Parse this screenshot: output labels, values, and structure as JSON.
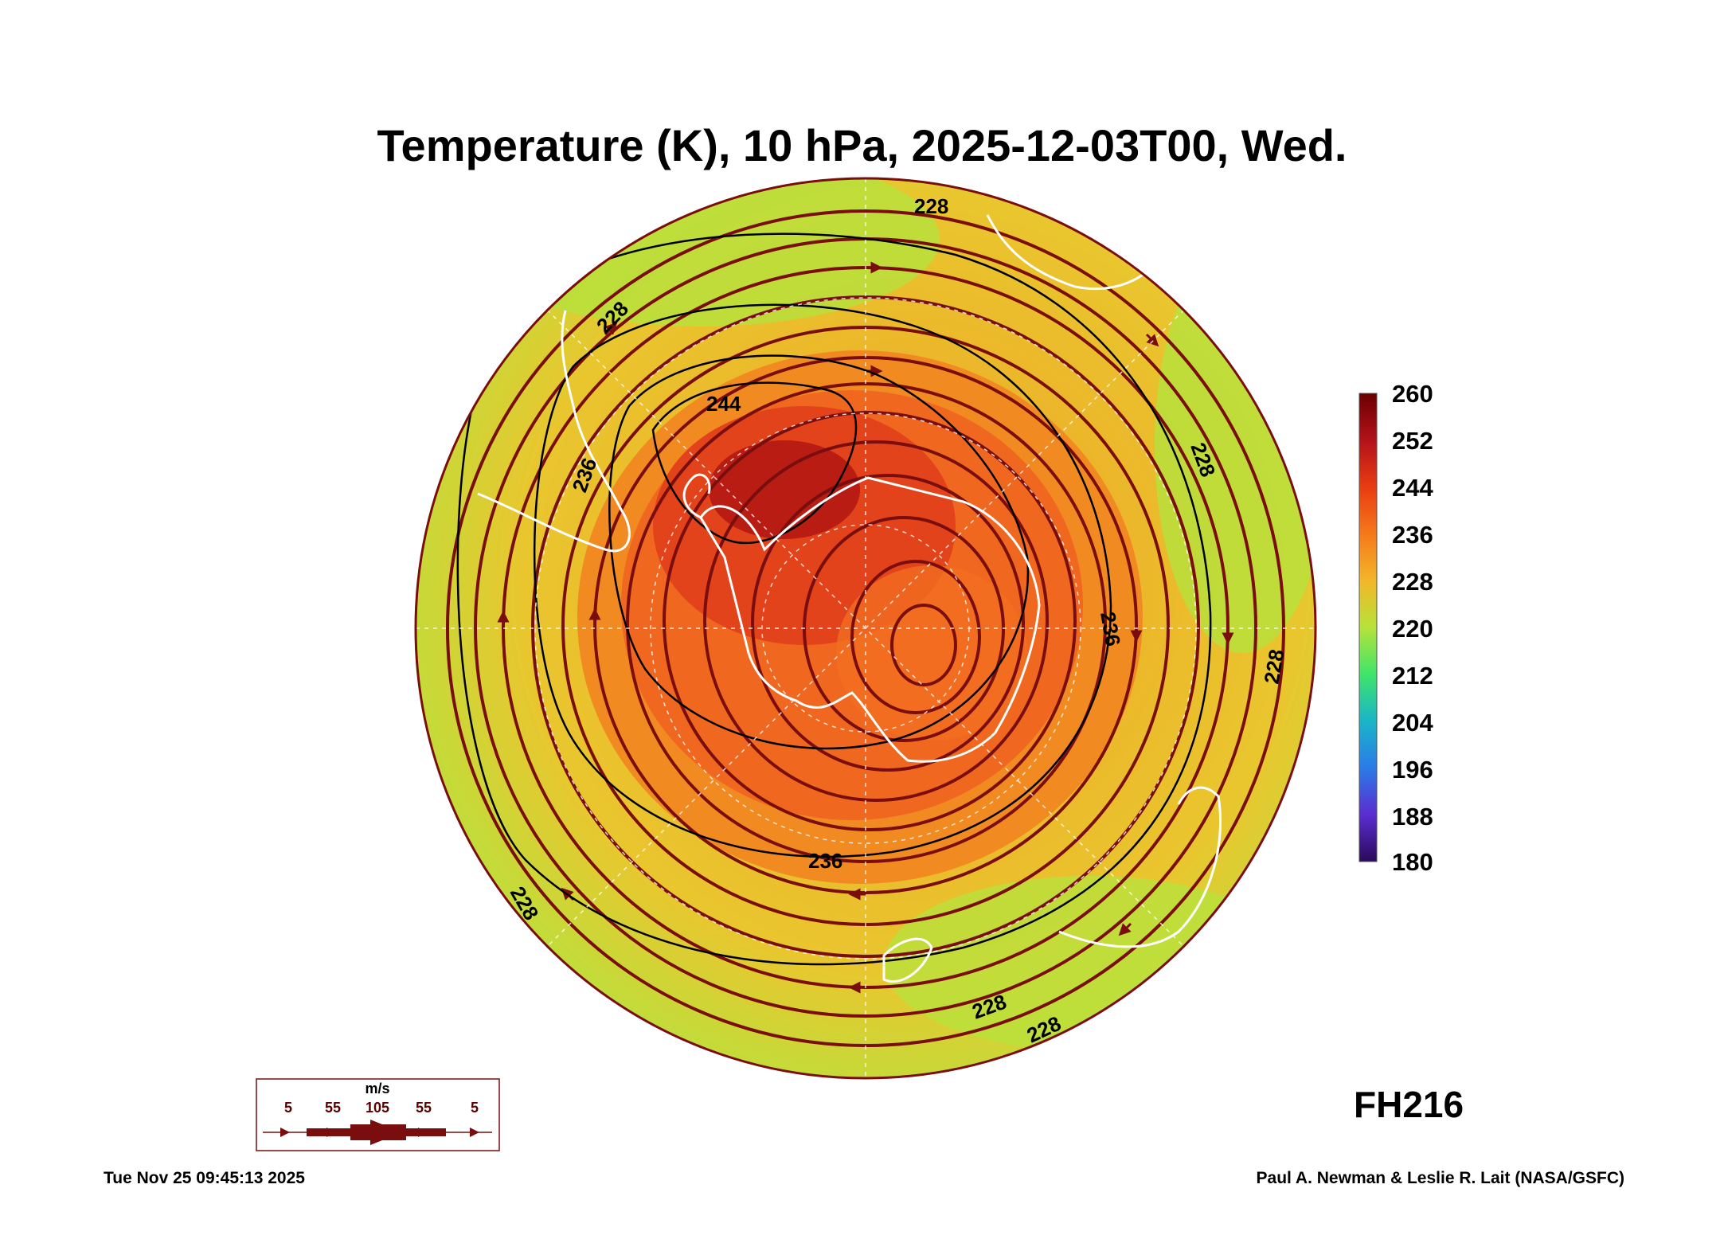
{
  "title": "Temperature (K), 10 hPa, 2025-12-03T00, Wed.",
  "forecast_hour": "FH216",
  "footer": {
    "timestamp": "Tue Nov 25 09:45:13 2025",
    "credit": "Paul A. Newman & Leslie R. Lait (NASA/GSFC)"
  },
  "colorbar": {
    "ticks": [
      "260",
      "252",
      "244",
      "236",
      "228",
      "220",
      "212",
      "204",
      "196",
      "188",
      "180"
    ],
    "colors": [
      "#6a0000",
      "#b3121a",
      "#e83c12",
      "#f6791a",
      "#f3b62a",
      "#b6e33a",
      "#3fe46a",
      "#1ab5c8",
      "#2b7be8",
      "#5a2dd0",
      "#2a0a5a"
    ]
  },
  "contour_labels": [
    "244",
    "236",
    "236",
    "236",
    "228",
    "228",
    "228",
    "228",
    "228",
    "228",
    "228"
  ],
  "wind_legend": {
    "unit": "m/s",
    "values": [
      "5",
      "55",
      "105",
      "55",
      "5"
    ]
  },
  "colors": {
    "outer": "#b9e13c",
    "warm": "#f0a226",
    "core": "#f06820",
    "max": "#b81c12",
    "streamline": "#7a0e0e",
    "coast": "#ffffff"
  }
}
